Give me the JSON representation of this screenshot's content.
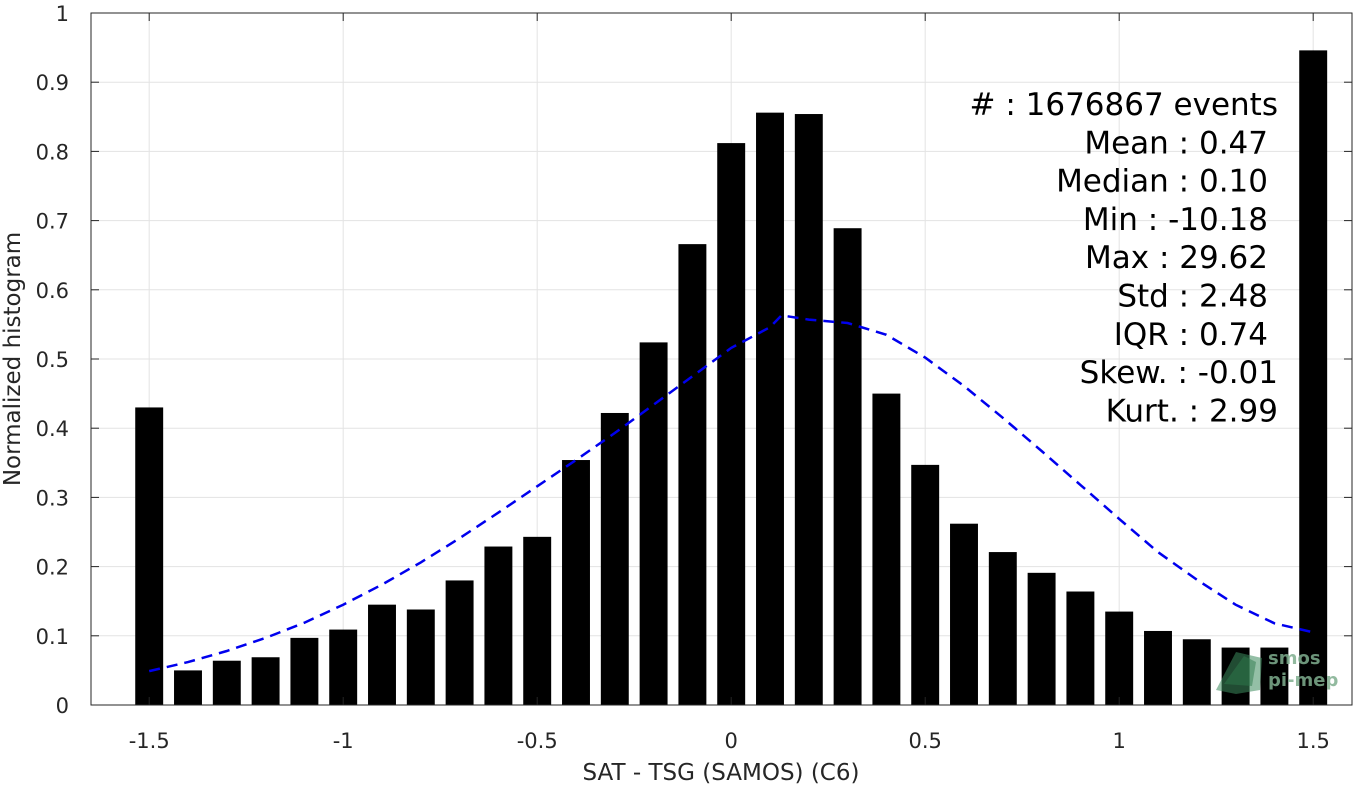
{
  "chart_data": {
    "type": "bar",
    "xlabel": "SAT - TSG (SAMOS) (C6)",
    "ylabel": "Normalized histogram",
    "xlim": [
      -1.65,
      1.6
    ],
    "ylim": [
      0,
      1
    ],
    "grid": true,
    "x_ticks": [
      -1.5,
      -1,
      -0.5,
      0,
      0.5,
      1,
      1.5
    ],
    "x_tick_labels": [
      "-1.5",
      "-1",
      "-0.5",
      "0",
      "0.5",
      "1",
      "1.5"
    ],
    "y_ticks": [
      0,
      0.1,
      0.2,
      0.3,
      0.4,
      0.5,
      0.6,
      0.7,
      0.8,
      0.9,
      1
    ],
    "y_tick_labels": [
      "0",
      "0.1",
      "0.2",
      "0.3",
      "0.4",
      "0.5",
      "0.6",
      "0.7",
      "0.8",
      "0.9",
      "1"
    ],
    "bin_width": 0.1,
    "x": [
      -1.5,
      -1.4,
      -1.3,
      -1.2,
      -1.1,
      -1.0,
      -0.9,
      -0.8,
      -0.7,
      -0.6,
      -0.5,
      -0.4,
      -0.3,
      -0.2,
      -0.1,
      0.0,
      0.1,
      0.2,
      0.3,
      0.4,
      0.5,
      0.6,
      0.7,
      0.8,
      0.9,
      1.0,
      1.1,
      1.2,
      1.3,
      1.4,
      1.5
    ],
    "values": [
      0.43,
      0.05,
      0.064,
      0.069,
      0.097,
      0.109,
      0.145,
      0.138,
      0.18,
      0.229,
      0.243,
      0.354,
      0.422,
      0.524,
      0.666,
      0.812,
      0.856,
      0.854,
      0.689,
      0.45,
      0.347,
      0.262,
      0.221,
      0.191,
      0.164,
      0.135,
      0.107,
      0.095,
      0.083,
      0.083,
      0.946
    ],
    "bar_color": "#000000",
    "fit_curve": {
      "style": "dashed",
      "color": "#0000ee",
      "x": [
        -1.5,
        -1.4,
        -1.3,
        -1.2,
        -1.1,
        -1.0,
        -0.9,
        -0.8,
        -0.7,
        -0.6,
        -0.5,
        -0.4,
        -0.3,
        -0.2,
        -0.1,
        0.0,
        0.1,
        0.13,
        0.2,
        0.3,
        0.4,
        0.5,
        0.6,
        0.7,
        0.8,
        0.9,
        1.0,
        1.1,
        1.2,
        1.3,
        1.4,
        1.5
      ],
      "y": [
        0.049,
        0.062,
        0.078,
        0.097,
        0.119,
        0.145,
        0.174,
        0.206,
        0.241,
        0.278,
        0.316,
        0.354,
        0.393,
        0.434,
        0.475,
        0.516,
        0.546,
        0.563,
        0.557,
        0.552,
        0.535,
        0.502,
        0.461,
        0.415,
        0.367,
        0.318,
        0.269,
        0.221,
        0.181,
        0.145,
        0.118,
        0.105
      ]
    },
    "stats": [
      "#  : 1676867 events",
      "Mean : 0.47",
      "Median : 0.10",
      "Min : -10.18",
      "Max : 29.62",
      "Std : 2.48",
      "IQR : 0.74",
      "Skew. : -0.01",
      "Kurt. : 2.99"
    ],
    "logo_lines": [
      "smos",
      "pi-mep"
    ]
  }
}
